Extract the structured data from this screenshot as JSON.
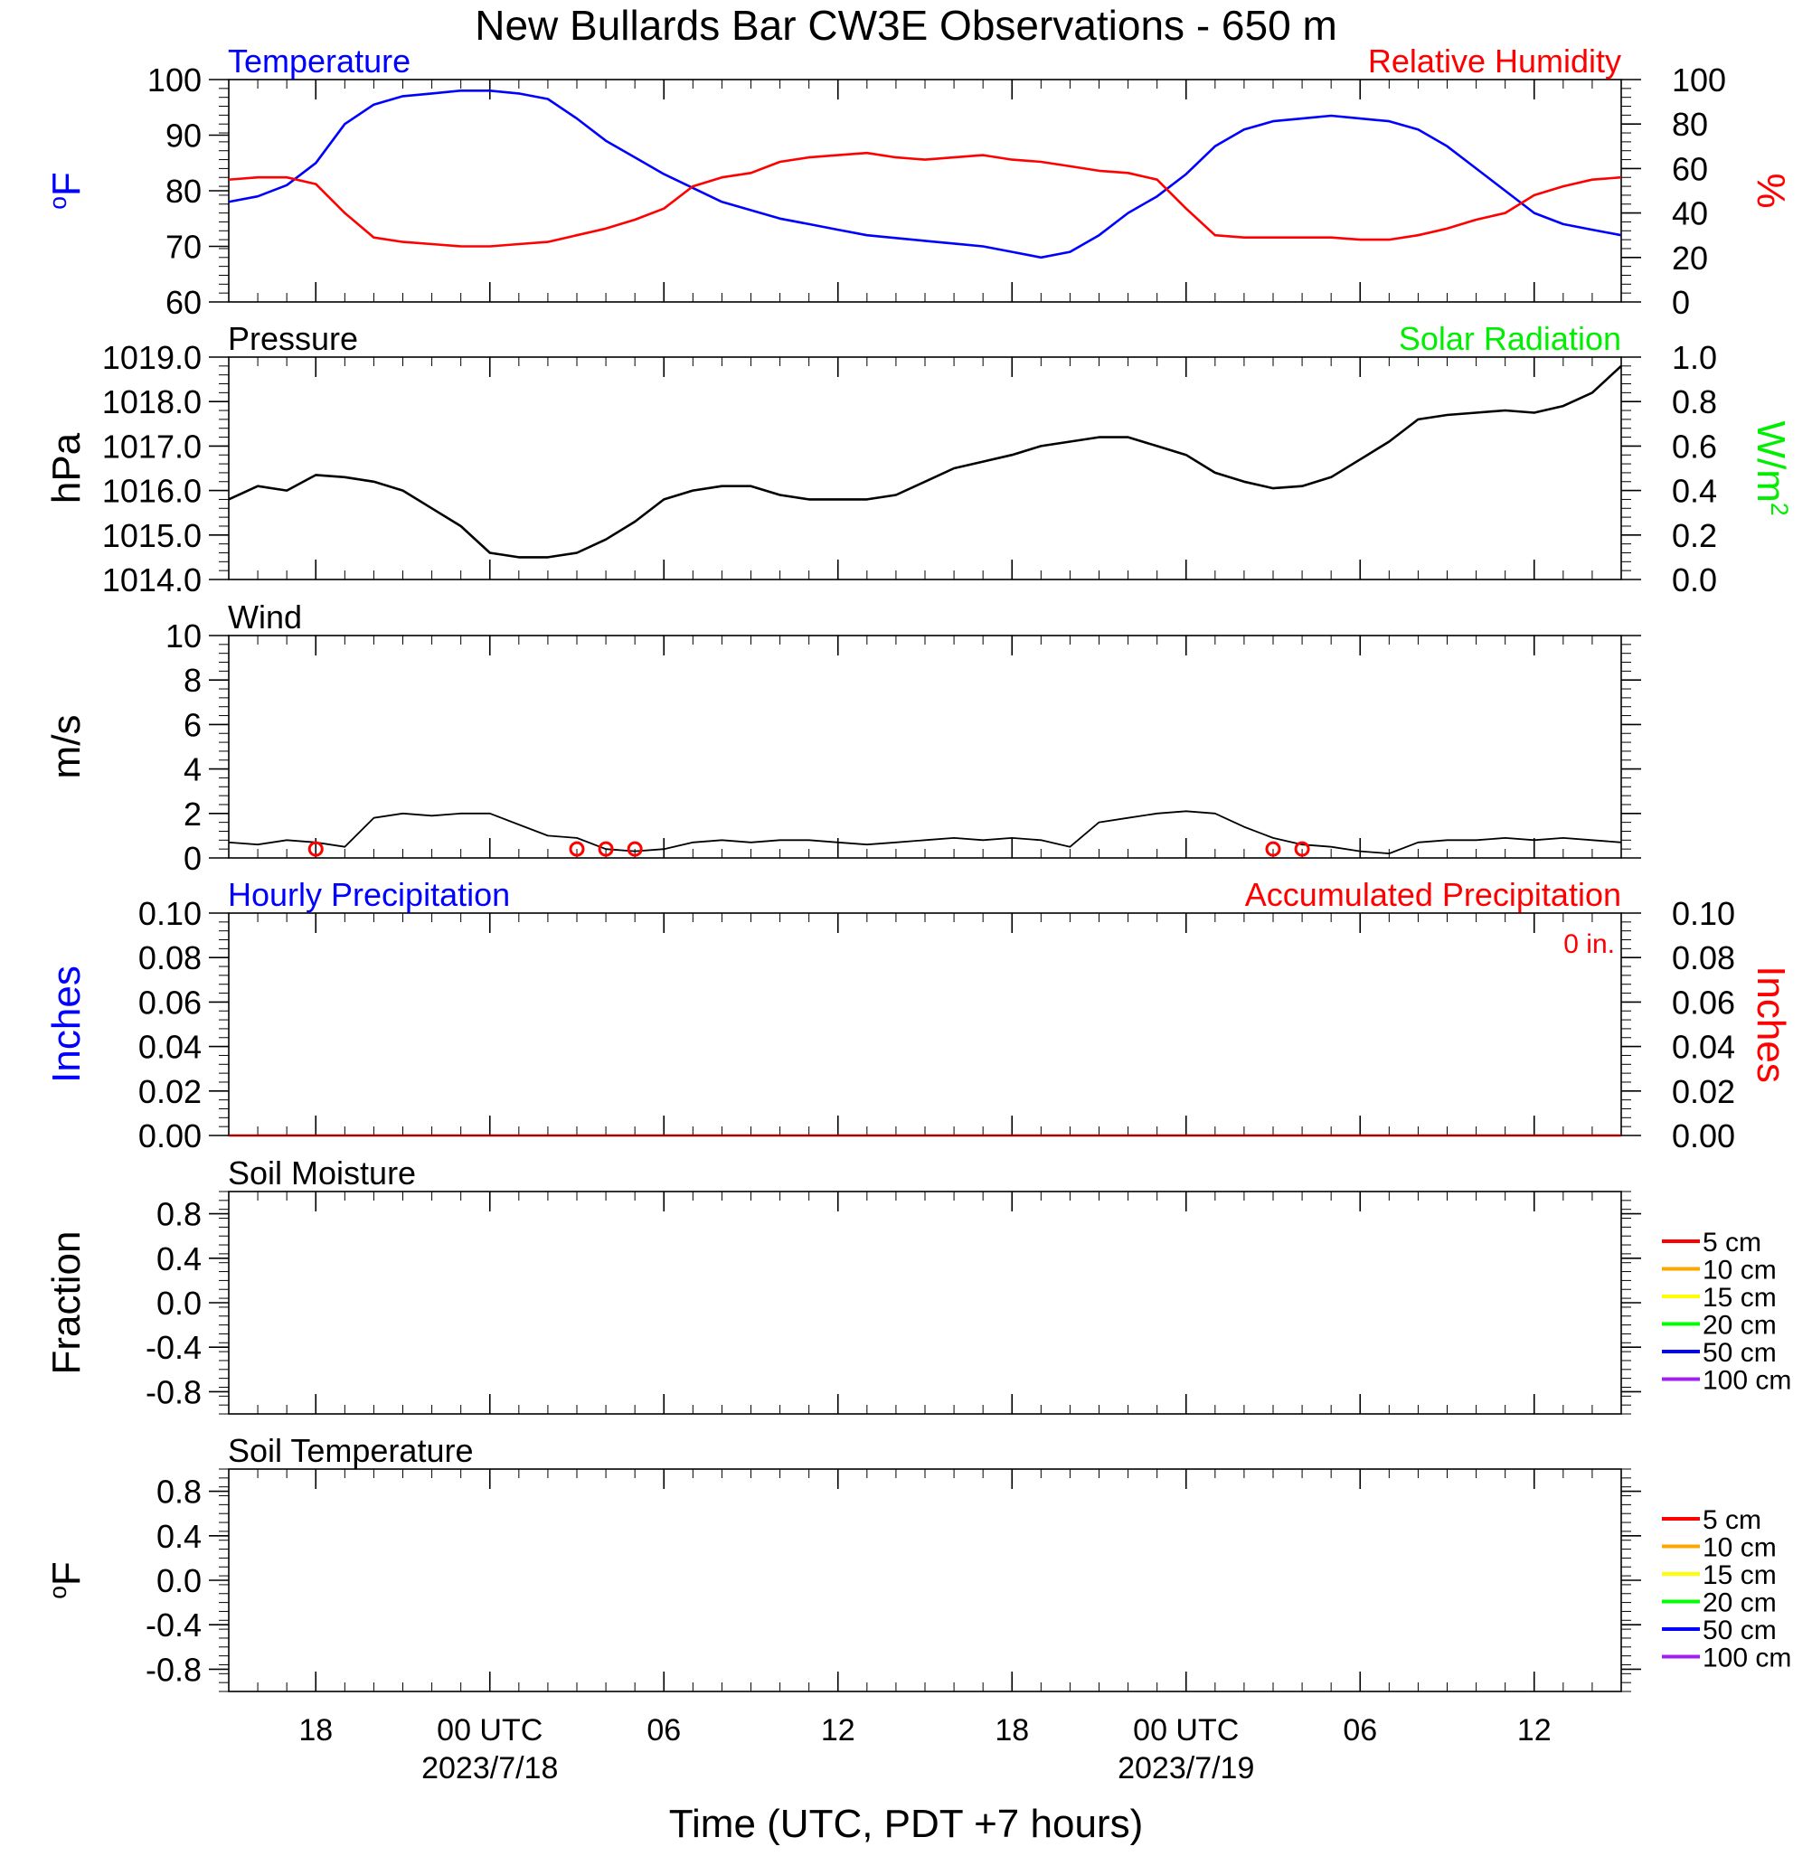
{
  "title": "New Bullards Bar CW3E Observations - 650 m",
  "x_axis": {
    "label": "Time (UTC, PDT +7 hours)",
    "range_hours": [
      -3,
      45
    ],
    "tick_labels": [
      "18",
      "00 UTC",
      "06",
      "12",
      "18",
      "00 UTC",
      "06",
      "12"
    ],
    "tick_hours": [
      0,
      6,
      12,
      18,
      24,
      30,
      36,
      42
    ],
    "date_labels": [
      "2023/7/18",
      "2023/7/19"
    ],
    "date_hours": [
      6,
      30
    ],
    "start": "2023/7/17 15 UTC"
  },
  "colors": {
    "blue": "#0000ff",
    "red": "#ff0000",
    "green": "#00ee00",
    "black": "#000000"
  },
  "chart_data": [
    {
      "type": "line",
      "title": "Temperature",
      "title_right": "Relative Humidity",
      "ylabel": "oF",
      "ylabel_right": "%",
      "ylim": [
        60,
        100
      ],
      "ylim_right": [
        0,
        100
      ],
      "yticks": [
        "60",
        "70",
        "80",
        "90",
        "100"
      ],
      "yticks_right": [
        "0",
        "20",
        "40",
        "60",
        "80",
        "100"
      ],
      "x_hours": [
        -3,
        -2,
        -1,
        0,
        1,
        2,
        3,
        4,
        5,
        6,
        7,
        8,
        9,
        10,
        11,
        12,
        13,
        14,
        15,
        16,
        17,
        18,
        19,
        20,
        21,
        22,
        23,
        24,
        25,
        26,
        27,
        28,
        29,
        30,
        31,
        32,
        33,
        34,
        35,
        36,
        37,
        38,
        39,
        40,
        41,
        42,
        43,
        44,
        45
      ],
      "series": [
        {
          "name": "Temperature",
          "axis": "left",
          "color": "#0000ff",
          "values": [
            78,
            79,
            81,
            85,
            92,
            95.5,
            97,
            97.5,
            98,
            98,
            97.5,
            96.5,
            93,
            89,
            86,
            83,
            80.5,
            78,
            76.5,
            75,
            74,
            73,
            72,
            71.5,
            71,
            70.5,
            70,
            69,
            68,
            69,
            72,
            76,
            79,
            83,
            88,
            91,
            92.5,
            93,
            93.5,
            93,
            92.5,
            91,
            88,
            84,
            80,
            76,
            74,
            73,
            72
          ]
        },
        {
          "name": "Relative Humidity",
          "axis": "right",
          "color": "#ff0000",
          "values": [
            55,
            56,
            56,
            53,
            40,
            29,
            27,
            26,
            25,
            25,
            26,
            27,
            30,
            33,
            37,
            42,
            52,
            56,
            58,
            63,
            65,
            66,
            67,
            65,
            64,
            65,
            66,
            64,
            63,
            61,
            59,
            58,
            55,
            42,
            30,
            29,
            29,
            29,
            29,
            28,
            28,
            30,
            33,
            37,
            40,
            48,
            52,
            55,
            56
          ]
        }
      ]
    },
    {
      "type": "line",
      "title": "Pressure",
      "title_right": "Solar Radiation",
      "ylabel": "hPa",
      "ylabel_right": "W/m2",
      "ylim": [
        1014.0,
        1019.0
      ],
      "ylim_right": [
        0.0,
        1.0
      ],
      "yticks": [
        "1014.0",
        "1015.0",
        "1016.0",
        "1017.0",
        "1018.0",
        "1019.0"
      ],
      "yticks_right": [
        "0.0",
        "0.2",
        "0.4",
        "0.6",
        "0.8",
        "1.0"
      ],
      "x_hours": [
        -3,
        -2,
        -1,
        0,
        1,
        2,
        3,
        4,
        5,
        6,
        7,
        8,
        9,
        10,
        11,
        12,
        13,
        14,
        15,
        16,
        17,
        18,
        19,
        20,
        21,
        22,
        23,
        24,
        25,
        26,
        27,
        28,
        29,
        30,
        31,
        32,
        33,
        34,
        35,
        36,
        37,
        38,
        39,
        40,
        41,
        42,
        43,
        44,
        45
      ],
      "series": [
        {
          "name": "Pressure",
          "color": "#000000",
          "values": [
            1015.8,
            1016.1,
            1016.0,
            1016.35,
            1016.3,
            1016.2,
            1016.0,
            1015.6,
            1015.2,
            1014.6,
            1014.5,
            1014.5,
            1014.6,
            1014.9,
            1015.3,
            1015.8,
            1016.0,
            1016.1,
            1016.1,
            1015.9,
            1015.8,
            1015.8,
            1015.8,
            1015.9,
            1016.2,
            1016.5,
            1016.65,
            1016.8,
            1017.0,
            1017.1,
            1017.2,
            1017.2,
            1017.0,
            1016.8,
            1016.4,
            1016.2,
            1016.05,
            1016.1,
            1016.3,
            1016.7,
            1017.1,
            1017.6,
            1017.7,
            1017.75,
            1017.8,
            1017.75,
            1017.9,
            1018.2,
            1018.8
          ]
        }
      ]
    },
    {
      "type": "line",
      "title": "Wind",
      "ylabel": "m/s",
      "ylim": [
        0,
        10
      ],
      "yticks": [
        "0",
        "2",
        "4",
        "6",
        "8",
        "10"
      ],
      "x_hours": [
        -3,
        -2,
        -1,
        0,
        1,
        2,
        3,
        4,
        5,
        6,
        7,
        8,
        9,
        10,
        11,
        12,
        13,
        14,
        15,
        16,
        17,
        18,
        19,
        20,
        21,
        22,
        23,
        24,
        25,
        26,
        27,
        28,
        29,
        30,
        31,
        32,
        33,
        34,
        35,
        36,
        37,
        38,
        39,
        40,
        41,
        42,
        43,
        44,
        45
      ],
      "series": [
        {
          "name": "Wind speed",
          "color": "#000000",
          "values": [
            0.7,
            0.6,
            0.8,
            0.7,
            0.5,
            1.8,
            2.0,
            1.9,
            2.0,
            2.0,
            1.5,
            1.0,
            0.9,
            0.4,
            0.3,
            0.4,
            0.7,
            0.8,
            0.7,
            0.8,
            0.8,
            0.7,
            0.6,
            0.7,
            0.8,
            0.9,
            0.8,
            0.9,
            0.8,
            0.5,
            1.6,
            1.8,
            2.0,
            2.1,
            2.0,
            1.4,
            0.9,
            0.6,
            0.5,
            0.3,
            0.2,
            0.7,
            0.8,
            0.8,
            0.9,
            0.8,
            0.9,
            0.8,
            0.7
          ]
        }
      ],
      "calm_circles_hours": [
        0,
        9,
        10,
        11,
        33,
        34
      ]
    },
    {
      "type": "line",
      "title": "Hourly Precipitation",
      "title_right": "Accumulated Precipitation",
      "annotation": "0 in.",
      "ylabel": "Inches",
      "ylabel_right": "Inches",
      "ylim": [
        0.0,
        0.1
      ],
      "ylim_right": [
        0.0,
        0.1
      ],
      "yticks": [
        "0.00",
        "0.02",
        "0.04",
        "0.06",
        "0.08",
        "0.10"
      ],
      "yticks_right": [
        "0.00",
        "0.02",
        "0.04",
        "0.06",
        "0.08",
        "0.10"
      ],
      "series": [
        {
          "name": "Accumulated Precipitation",
          "color": "#aa0000",
          "values": [
            0,
            0
          ]
        }
      ]
    },
    {
      "type": "line",
      "title": "Soil Moisture",
      "ylabel": "Fraction",
      "ylim": [
        -1.0,
        1.0
      ],
      "yticks": [
        "-0.8",
        "-0.4",
        "0.0",
        "0.4",
        "0.8"
      ],
      "legend": [
        {
          "name": "5 cm",
          "color": "#ff0000"
        },
        {
          "name": "10 cm",
          "color": "#ffa500"
        },
        {
          "name": "15 cm",
          "color": "#ffff00"
        },
        {
          "name": "20 cm",
          "color": "#00ff00"
        },
        {
          "name": "50 cm",
          "color": "#0000ff"
        },
        {
          "name": "100 cm",
          "color": "#a020f0"
        }
      ]
    },
    {
      "type": "line",
      "title": "Soil Temperature",
      "ylabel": "oF",
      "ylim": [
        -1.0,
        1.0
      ],
      "yticks": [
        "-0.8",
        "-0.4",
        "0.0",
        "0.4",
        "0.8"
      ],
      "legend": [
        {
          "name": "5 cm",
          "color": "#ff0000"
        },
        {
          "name": "10 cm",
          "color": "#ffa500"
        },
        {
          "name": "15 cm",
          "color": "#ffff00"
        },
        {
          "name": "20 cm",
          "color": "#00ff00"
        },
        {
          "name": "50 cm",
          "color": "#0000ff"
        },
        {
          "name": "100 cm",
          "color": "#a020f0"
        }
      ]
    }
  ]
}
